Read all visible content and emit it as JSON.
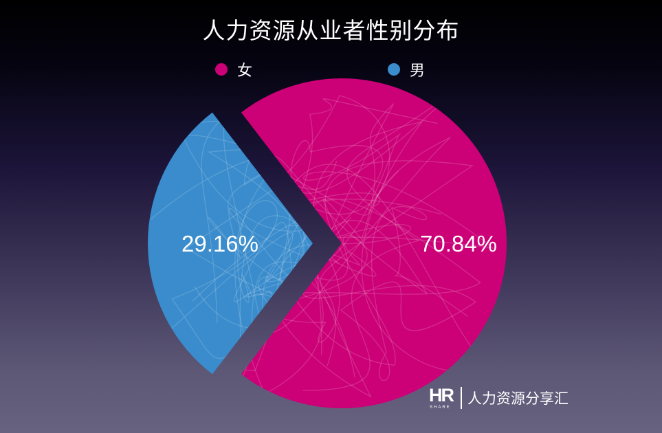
{
  "chart_data": {
    "type": "pie",
    "title": "人力资源从业者性别分布",
    "legend_position": "top",
    "categories": [
      "女",
      "男"
    ],
    "values": [
      70.84,
      29.16
    ],
    "labels": [
      "70.84%",
      "29.16%"
    ],
    "colors": [
      "#cc0077",
      "#3a8ccc"
    ],
    "exploded": [
      false,
      true
    ]
  },
  "legend": {
    "female_label": "女",
    "male_label": "男"
  },
  "brand": {
    "logo_text": "HR",
    "logo_sub": "SHARE",
    "name": "人力资源分享汇"
  }
}
